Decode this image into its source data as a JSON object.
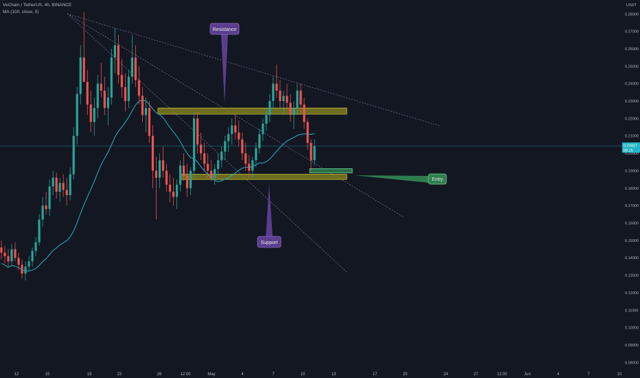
{
  "header": {
    "title": "VeChain / TetherUS, 4h, BINANCE",
    "indicator": "MA (100, close, 0)"
  },
  "chart_data": {
    "type": "candlestick",
    "currency": "USDT",
    "ylim": [
      0.075,
      0.288
    ],
    "price_ticks": [
      "0.28000",
      "0.27000",
      "0.26000",
      "0.25000",
      "0.24000",
      "0.23000",
      "0.22000",
      "0.21000",
      "0.20000",
      "0.19000",
      "0.18000",
      "0.17000",
      "0.16000",
      "0.15000",
      "0.14000",
      "0.13000",
      "0.12000",
      "0.11000",
      "0.10000",
      "0.09000",
      "0.08000"
    ],
    "time_ticks": [
      "12",
      "15",
      "19",
      "22",
      "26",
      "12:00",
      "May",
      "4",
      "7",
      "10",
      "13",
      "17",
      "20",
      "24",
      "27",
      "12:00",
      "Jun",
      "4",
      "7",
      "10"
    ],
    "current_price": "0.20427",
    "current_countdown": "06:15",
    "resistance_zone": [
      0.2225,
      0.226
    ],
    "support_zone": [
      0.185,
      0.188
    ],
    "entry_zone": [
      0.1888,
      0.1912
    ],
    "annotations": [
      "Resistance",
      "Support",
      "Entry"
    ],
    "colors": {
      "up": "#26a69a",
      "down": "#ef5350",
      "ma": "#22b5c7",
      "zone": "#8c8a1e",
      "callout": "#5b3d8e",
      "entry": "#2f7d4f"
    },
    "grid": false,
    "series_ohlc": [
      [
        0.146,
        0.15,
        0.139,
        0.143
      ],
      [
        0.143,
        0.147,
        0.137,
        0.141
      ],
      [
        0.141,
        0.145,
        0.135,
        0.138
      ],
      [
        0.138,
        0.148,
        0.136,
        0.145
      ],
      [
        0.145,
        0.149,
        0.138,
        0.14
      ],
      [
        0.14,
        0.143,
        0.133,
        0.136
      ],
      [
        0.136,
        0.139,
        0.128,
        0.131
      ],
      [
        0.131,
        0.138,
        0.127,
        0.135
      ],
      [
        0.135,
        0.141,
        0.132,
        0.138
      ],
      [
        0.138,
        0.146,
        0.135,
        0.144
      ],
      [
        0.144,
        0.152,
        0.141,
        0.149
      ],
      [
        0.149,
        0.165,
        0.147,
        0.162
      ],
      [
        0.162,
        0.175,
        0.158,
        0.17
      ],
      [
        0.17,
        0.178,
        0.165,
        0.168
      ],
      [
        0.168,
        0.185,
        0.164,
        0.181
      ],
      [
        0.181,
        0.19,
        0.176,
        0.186
      ],
      [
        0.186,
        0.189,
        0.174,
        0.178
      ],
      [
        0.178,
        0.186,
        0.172,
        0.183
      ],
      [
        0.183,
        0.188,
        0.175,
        0.179
      ],
      [
        0.179,
        0.186,
        0.17,
        0.176
      ],
      [
        0.176,
        0.192,
        0.173,
        0.188
      ],
      [
        0.188,
        0.215,
        0.185,
        0.21
      ],
      [
        0.21,
        0.238,
        0.205,
        0.234
      ],
      [
        0.234,
        0.262,
        0.228,
        0.255
      ],
      [
        0.255,
        0.281,
        0.245,
        0.241
      ],
      [
        0.241,
        0.248,
        0.222,
        0.228
      ],
      [
        0.228,
        0.236,
        0.212,
        0.218
      ],
      [
        0.218,
        0.232,
        0.21,
        0.226
      ],
      [
        0.226,
        0.245,
        0.22,
        0.24
      ],
      [
        0.24,
        0.252,
        0.232,
        0.236
      ],
      [
        0.236,
        0.244,
        0.222,
        0.226
      ],
      [
        0.226,
        0.238,
        0.216,
        0.232
      ],
      [
        0.232,
        0.26,
        0.228,
        0.255
      ],
      [
        0.255,
        0.272,
        0.246,
        0.262
      ],
      [
        0.262,
        0.268,
        0.24,
        0.245
      ],
      [
        0.245,
        0.254,
        0.232,
        0.238
      ],
      [
        0.238,
        0.246,
        0.224,
        0.23
      ],
      [
        0.23,
        0.248,
        0.226,
        0.244
      ],
      [
        0.244,
        0.268,
        0.24,
        0.255
      ],
      [
        0.255,
        0.262,
        0.238,
        0.242
      ],
      [
        0.242,
        0.25,
        0.228,
        0.233
      ],
      [
        0.233,
        0.238,
        0.218,
        0.222
      ],
      [
        0.222,
        0.232,
        0.212,
        0.226
      ],
      [
        0.226,
        0.23,
        0.206,
        0.21
      ],
      [
        0.21,
        0.216,
        0.18,
        0.19
      ],
      [
        0.19,
        0.198,
        0.162,
        0.186
      ],
      [
        0.186,
        0.2,
        0.18,
        0.196
      ],
      [
        0.196,
        0.204,
        0.186,
        0.19
      ],
      [
        0.19,
        0.194,
        0.178,
        0.182
      ],
      [
        0.182,
        0.188,
        0.172,
        0.178
      ],
      [
        0.178,
        0.186,
        0.17,
        0.175
      ],
      [
        0.175,
        0.185,
        0.168,
        0.182
      ],
      [
        0.182,
        0.196,
        0.178,
        0.193
      ],
      [
        0.193,
        0.2,
        0.184,
        0.187
      ],
      [
        0.187,
        0.194,
        0.175,
        0.18
      ],
      [
        0.18,
        0.192,
        0.176,
        0.19
      ],
      [
        0.19,
        0.224,
        0.186,
        0.22
      ],
      [
        0.22,
        0.224,
        0.2,
        0.205
      ],
      [
        0.205,
        0.212,
        0.196,
        0.2
      ],
      [
        0.2,
        0.206,
        0.19,
        0.194
      ],
      [
        0.194,
        0.2,
        0.186,
        0.19
      ],
      [
        0.19,
        0.196,
        0.184,
        0.186
      ],
      [
        0.186,
        0.194,
        0.182,
        0.191
      ],
      [
        0.191,
        0.2,
        0.187,
        0.196
      ],
      [
        0.196,
        0.204,
        0.192,
        0.201
      ],
      [
        0.201,
        0.21,
        0.196,
        0.207
      ],
      [
        0.207,
        0.215,
        0.201,
        0.211
      ],
      [
        0.211,
        0.22,
        0.205,
        0.216
      ],
      [
        0.216,
        0.222,
        0.208,
        0.212
      ],
      [
        0.212,
        0.219,
        0.204,
        0.208
      ],
      [
        0.208,
        0.212,
        0.196,
        0.2
      ],
      [
        0.2,
        0.206,
        0.19,
        0.194
      ],
      [
        0.194,
        0.199,
        0.186,
        0.19
      ],
      [
        0.19,
        0.198,
        0.186,
        0.196
      ],
      [
        0.196,
        0.206,
        0.192,
        0.203
      ],
      [
        0.203,
        0.214,
        0.2,
        0.211
      ],
      [
        0.211,
        0.22,
        0.207,
        0.217
      ],
      [
        0.217,
        0.226,
        0.213,
        0.222
      ],
      [
        0.222,
        0.234,
        0.218,
        0.23
      ],
      [
        0.23,
        0.244,
        0.226,
        0.24
      ],
      [
        0.24,
        0.251,
        0.232,
        0.236
      ],
      [
        0.236,
        0.242,
        0.226,
        0.23
      ],
      [
        0.23,
        0.236,
        0.222,
        0.233
      ],
      [
        0.233,
        0.24,
        0.226,
        0.229
      ],
      [
        0.229,
        0.234,
        0.218,
        0.222
      ],
      [
        0.222,
        0.23,
        0.214,
        0.226
      ],
      [
        0.226,
        0.24,
        0.222,
        0.236
      ],
      [
        0.236,
        0.24,
        0.224,
        0.228
      ],
      [
        0.228,
        0.232,
        0.214,
        0.218
      ],
      [
        0.218,
        0.22,
        0.202,
        0.206
      ],
      [
        0.206,
        0.208,
        0.19,
        0.196
      ],
      [
        0.196,
        0.208,
        0.193,
        0.204
      ]
    ]
  }
}
